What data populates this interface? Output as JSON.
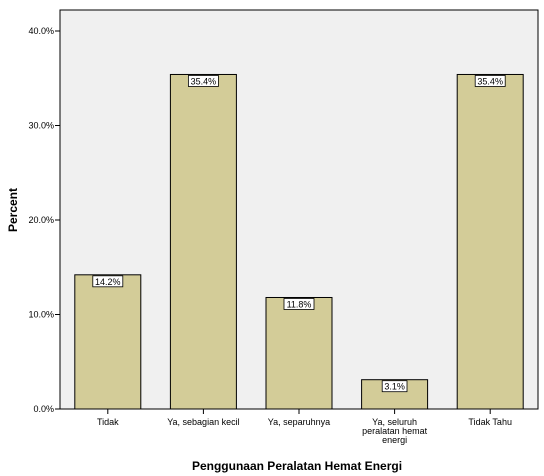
{
  "chart_data": {
    "type": "bar",
    "xlabel": "Penggunaan Peralatan Hemat Energi",
    "ylabel": "Percent",
    "ylim": [
      0,
      42
    ],
    "yticks": [
      0,
      10,
      20,
      30,
      40
    ],
    "ytick_labels": [
      "0.0%",
      "10.0%",
      "20.0%",
      "30.0%",
      "40.0%"
    ],
    "categories": [
      [
        "Tidak"
      ],
      [
        "Ya, sebagian kecil"
      ],
      [
        "Ya, separuhnya"
      ],
      [
        "Ya, seluruh",
        "peralatan hemat",
        "energi"
      ],
      [
        "Tidak Tahu"
      ]
    ],
    "values": [
      14.2,
      35.4,
      11.8,
      3.1,
      35.4
    ],
    "data_labels": [
      "14.2%",
      "35.4%",
      "11.8%",
      "3.1%",
      "35.4%"
    ],
    "grid": false,
    "colors": {
      "bar_fill": "#d3cc98",
      "bar_stroke": "#000000",
      "plot_background": "#f0f0f0",
      "label_box": "#ffffff"
    }
  }
}
